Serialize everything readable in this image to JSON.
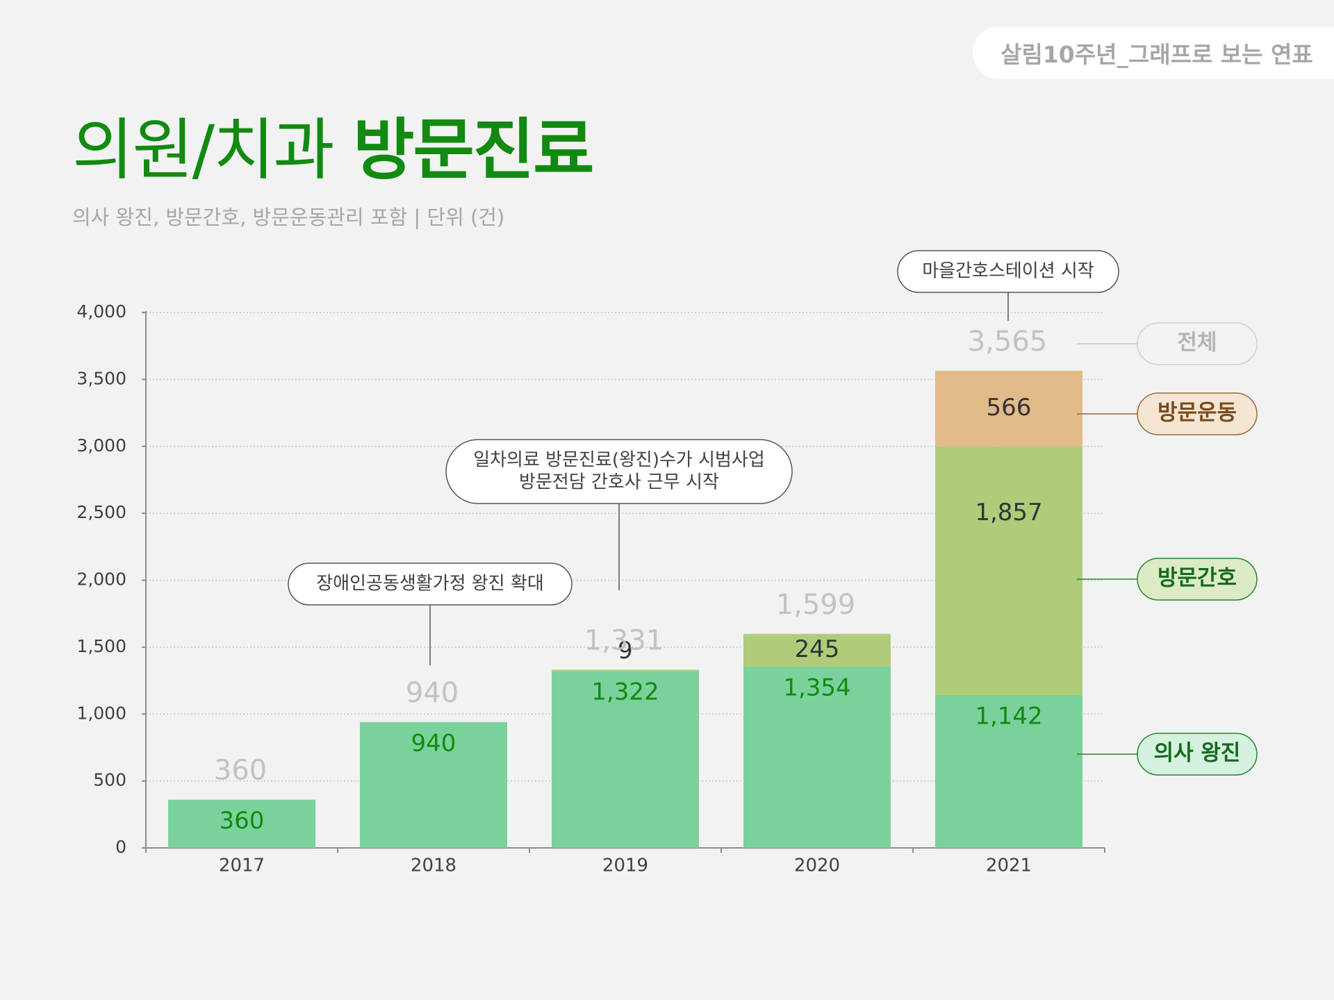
{
  "header": {
    "series_tag": "살림10주년_그래프로 보는 연표",
    "title_light": "의원/치과",
    "title_bold": "방문진료",
    "subtitle": "의사 왕진, 방문간호, 방문운동관리 포함 | 단위 (건)"
  },
  "colors": {
    "title_green": "#118a11",
    "doctor_visit": "#7bd19b",
    "home_nursing": "#afcc7b",
    "home_exercise": "#e1bb89",
    "total_label": "#c2c2c2",
    "gridline": "#c6c6c6"
  },
  "chart_data": {
    "type": "bar",
    "stacked": true,
    "categories": [
      "2017",
      "2018",
      "2019",
      "2020",
      "2021"
    ],
    "series": [
      {
        "name": "의사 왕진",
        "values": [
          360,
          940,
          1322,
          1354,
          1142
        ],
        "color": "#7bd19b"
      },
      {
        "name": "방문간호",
        "values": [
          0,
          0,
          9,
          245,
          1857
        ],
        "color": "#afcc7b"
      },
      {
        "name": "방문운동",
        "values": [
          0,
          0,
          0,
          0,
          566
        ],
        "color": "#e1bb89"
      }
    ],
    "data_labels": [
      [
        "360",
        "940",
        "1,322",
        "1,354",
        "1,142"
      ],
      [
        "",
        "",
        "9",
        "245",
        "1,857"
      ],
      [
        "",
        "",
        "",
        "",
        "566"
      ]
    ],
    "totals": {
      "label": "전체",
      "values": [
        "360",
        "940",
        "1,331",
        "1,599",
        "3,565"
      ]
    },
    "ylim": [
      0,
      4000
    ],
    "yticks": [
      "0",
      "500",
      "1,000",
      "1,500",
      "2,000",
      "2,500",
      "3,000",
      "3,500",
      "4,000"
    ],
    "grid": true,
    "legend_position": "right",
    "annotations": [
      {
        "category": "2018",
        "lines": [
          "장애인공동생활가정 왕진 확대"
        ]
      },
      {
        "category": "2019",
        "lines": [
          "일차의료 방문진료(왕진)수가 시범사업",
          "방문전담 간호사 근무 시작"
        ]
      },
      {
        "category": "2021",
        "lines": [
          "마을간호스테이션 시작"
        ]
      }
    ]
  }
}
